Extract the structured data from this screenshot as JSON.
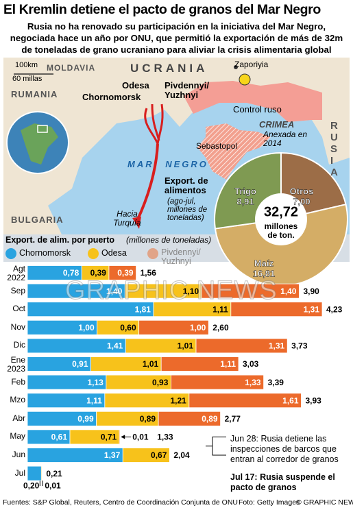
{
  "header": {
    "title": "El Kremlin detiene el pacto de granos del Mar Negro",
    "subtitle": "Rusia no ha renovado su participación en la iniciativa del Mar Negro, negociada hace un año por ONU, que permitió la exportación de más de 32m de toneladas de grano ucraniano para aliviar la crisis alimentaria global"
  },
  "map": {
    "labels": [
      "100km",
      "60 millas",
      "MOLDAVIA",
      "UCRANIA",
      "Zaporiyia",
      "RUMANIA",
      "Odesa",
      "Chornomorsk",
      "Pivdennyi/ Yuzhnyi",
      "Control ruso",
      "CRIMEA",
      "Anexada en 2014",
      "RUSIA",
      "MAR NEGRO",
      "Sebastopol",
      "Hacia Turquía",
      "BULGARIA"
    ]
  },
  "chart_data": [
    {
      "type": "pie",
      "title": "Export. de alimentos",
      "subtitle": "(ago-jul, millones de toneladas)",
      "categories": [
        "Otros",
        "Maíz",
        "Trigo"
      ],
      "values": [
        7.0,
        16.81,
        8.91
      ],
      "value_labels": [
        "7,00",
        "16,81",
        "8,91"
      ],
      "colors": [
        "#9c6d47",
        "#d4ad66",
        "#7f9a52"
      ],
      "total": {
        "value": 32.72,
        "label": "32,72"
      },
      "total_unit": "millones de ton."
    },
    {
      "type": "stacked_bar_horizontal",
      "title": "Export. de alim. por puerto",
      "subtitle": "(millones de toneladas)",
      "categories": [
        "Agt 2022",
        "Sep",
        "Oct",
        "Nov",
        "Dic",
        "Ene 2023",
        "Feb",
        "Mzo",
        "Abr",
        "May",
        "Jun",
        "Jul"
      ],
      "series": [
        {
          "name": "Chornomorsk",
          "color": "#29a3e0",
          "values": [
            0.78,
            1.4,
            1.81,
            1.0,
            1.41,
            0.91,
            1.13,
            1.11,
            0.99,
            0.61,
            1.37,
            0.2
          ],
          "value_labels": [
            "0,78",
            "1,40",
            "1,81",
            "1,00",
            "1,41",
            "0,91",
            "1,13",
            "1,11",
            "0,99",
            "0,61",
            "1,37",
            "0,20"
          ]
        },
        {
          "name": "Odesa",
          "color": "#f7c21b",
          "values": [
            0.39,
            1.1,
            1.11,
            0.6,
            1.01,
            1.01,
            0.93,
            1.21,
            0.89,
            0.71,
            0.67,
            0.01
          ],
          "value_labels": [
            "0,39",
            "1,10",
            "1,11",
            "0,60",
            "1,01",
            "1,01",
            "0,93",
            "1,21",
            "0,89",
            "0,71",
            "0,67",
            "0,01"
          ]
        },
        {
          "name": "Pivdennyi/ Yuzhnyi",
          "color": "#ec6a2b",
          "values": [
            0.39,
            1.4,
            1.31,
            1.0,
            1.31,
            1.11,
            1.33,
            1.61,
            0.89,
            0.01,
            null,
            null
          ],
          "value_labels": [
            "0,39",
            "1,40",
            "1,31",
            "1,00",
            "1,31",
            "1,11",
            "1,33",
            "1,61",
            "0,89",
            "0,01",
            null,
            null
          ]
        }
      ],
      "totals": [
        1.56,
        3.9,
        4.23,
        2.6,
        3.73,
        3.03,
        3.39,
        3.93,
        2.77,
        1.33,
        2.04,
        0.21
      ],
      "totals_labels": [
        "1,56",
        "3,90",
        "4,23",
        "2,60",
        "3,73",
        "3,03",
        "3,39",
        "3,93",
        "2,77",
        "1,33",
        "2,04",
        "0,21"
      ],
      "annotations": [
        "Jun 28: Rusia detiene las inspecciones de barcos que entran al corredor de granos",
        "Jul 17: Rusia suspende el pacto de granos"
      ]
    }
  ],
  "footer": {
    "sources": "Fuentes: S&P Global, Reuters, Centro de Coordinación Conjunta de ONU",
    "photo": "Foto: Getty Images",
    "credit": "© GRAPHIC NEWS",
    "watermark": "GRAPHIC NEWS"
  }
}
